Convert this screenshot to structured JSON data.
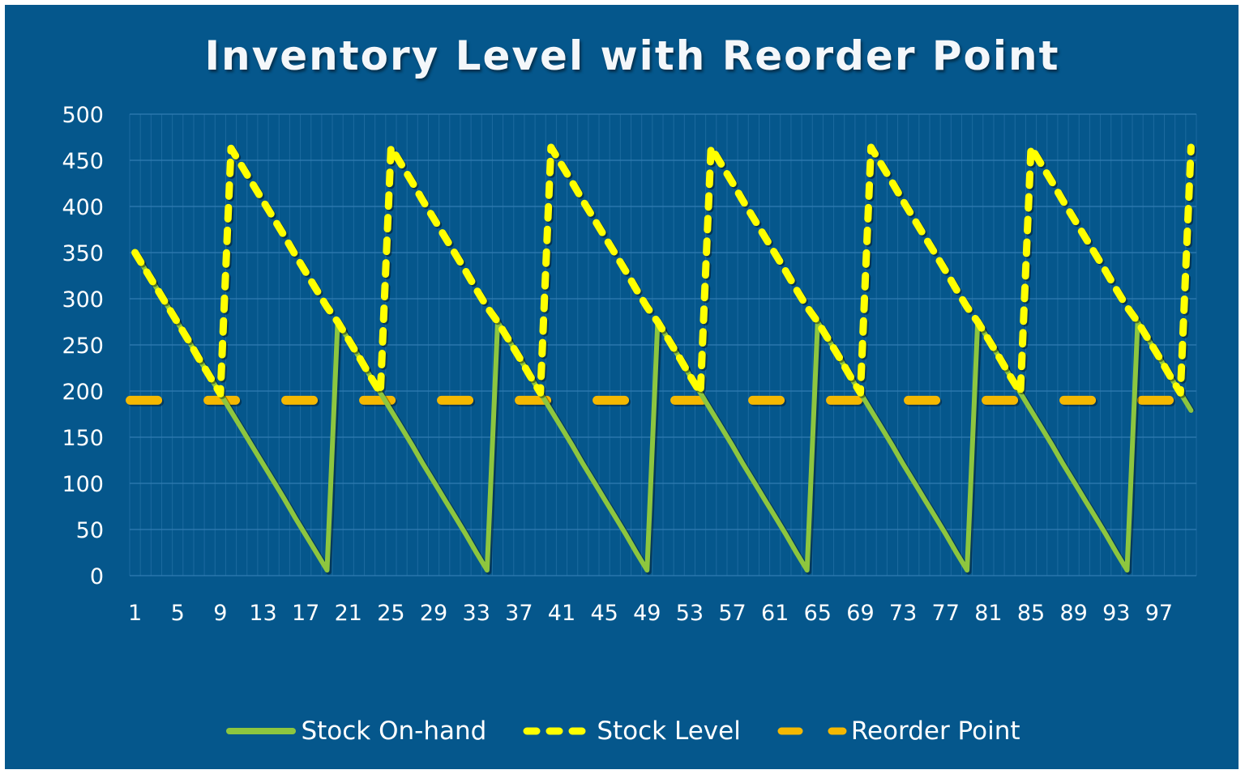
{
  "chart_data": {
    "type": "line",
    "title": "Inventory Level with Reorder Point",
    "xlabel": "",
    "ylabel": "",
    "ylim": [
      0,
      500
    ],
    "yticks": [
      0,
      50,
      100,
      150,
      200,
      250,
      300,
      350,
      400,
      450,
      500
    ],
    "xtick_labels": [
      "1",
      "5",
      "9",
      "13",
      "17",
      "21",
      "25",
      "29",
      "33",
      "37",
      "41",
      "45",
      "49",
      "53",
      "57",
      "61",
      "65",
      "69",
      "73",
      "77",
      "81",
      "85",
      "89",
      "93",
      "97"
    ],
    "x_start": 1,
    "x_end": 100,
    "grid": true,
    "legend_position": "bottom",
    "colors": {
      "background": "#05578c",
      "stock_on_hand": "#8dc63f",
      "stock_level": "#ffff00",
      "reorder_point": "#f5b800",
      "grid": "#2f7bb0"
    },
    "series": [
      {
        "name": "Stock On-hand",
        "style": "solid",
        "values": [
          350,
          331,
          312,
          293,
          274,
          255,
          235,
          216,
          197,
          178,
          159,
          140,
          121,
          102,
          83,
          63,
          44,
          25,
          6,
          275,
          256,
          237,
          217,
          198,
          179,
          160,
          141,
          121,
          102,
          83,
          64,
          45,
          25,
          6,
          275,
          256,
          237,
          217,
          198,
          179,
          160,
          141,
          121,
          102,
          83,
          64,
          45,
          25,
          6,
          275,
          256,
          237,
          217,
          198,
          179,
          160,
          141,
          121,
          102,
          83,
          64,
          45,
          25,
          6,
          275,
          256,
          237,
          217,
          198,
          179,
          160,
          141,
          121,
          102,
          83,
          64,
          45,
          25,
          6,
          275,
          256,
          237,
          217,
          198,
          179,
          160,
          141,
          121,
          102,
          83,
          64,
          45,
          25,
          6,
          275,
          256,
          237,
          217,
          198,
          179
        ]
      },
      {
        "name": "Stock Level",
        "style": "dashed",
        "values": [
          350,
          331,
          312,
          293,
          274,
          255,
          235,
          216,
          197,
          463,
          444,
          425,
          406,
          387,
          368,
          348,
          329,
          310,
          291,
          275,
          256,
          237,
          217,
          198,
          464,
          445,
          426,
          406,
          387,
          368,
          349,
          330,
          310,
          291,
          275,
          256,
          237,
          217,
          198,
          464,
          445,
          426,
          406,
          387,
          368,
          349,
          330,
          310,
          291,
          275,
          256,
          237,
          217,
          198,
          464,
          445,
          426,
          406,
          387,
          368,
          349,
          330,
          310,
          291,
          275,
          256,
          237,
          217,
          198,
          464,
          445,
          426,
          406,
          387,
          368,
          349,
          330,
          310,
          291,
          275,
          256,
          237,
          217,
          198,
          464,
          445,
          426,
          406,
          387,
          368,
          349,
          330,
          310,
          291,
          275,
          256,
          237,
          217,
          198,
          464
        ]
      },
      {
        "name": "Reorder Point",
        "style": "dashed",
        "constant": 190
      }
    ]
  },
  "legend": {
    "items": [
      {
        "label": "Stock On-hand"
      },
      {
        "label": "Stock Level"
      },
      {
        "label": "Reorder Point"
      }
    ]
  }
}
